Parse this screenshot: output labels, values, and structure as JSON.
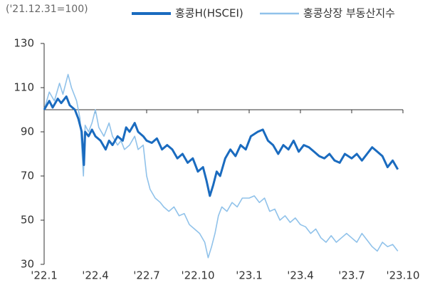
{
  "chart_data": {
    "type": "line",
    "subtitle": "('21.12.31=100)",
    "xaxis_cross": 100,
    "xlim": [
      0,
      21
    ],
    "xticks": [
      {
        "value": 0,
        "label": "'22.1"
      },
      {
        "value": 3,
        "label": "'22.4"
      },
      {
        "value": 6,
        "label": "'22.7"
      },
      {
        "value": 9,
        "label": "'22.10"
      },
      {
        "value": 12,
        "label": "'23.1"
      },
      {
        "value": 15,
        "label": "'23.4"
      },
      {
        "value": 18,
        "label": "'23.7"
      },
      {
        "value": 21,
        "label": "'23.10"
      }
    ],
    "ylim": [
      30,
      130
    ],
    "yticks": [
      30,
      50,
      70,
      90,
      110,
      130
    ],
    "legend": "top",
    "series": [
      {
        "name": "홍콩상장 부동산지수",
        "color": "#90c2ea",
        "width": 1.6,
        "x": [
          0,
          0.3,
          0.6,
          0.9,
          1.1,
          1.4,
          1.6,
          1.9,
          2.1,
          2.3,
          2.4,
          2.6,
          2.8,
          3.0,
          3.2,
          3.5,
          3.8,
          4.0,
          4.3,
          4.5,
          4.7,
          5.0,
          5.3,
          5.5,
          5.8,
          6.0,
          6.2,
          6.5,
          6.8,
          7.0,
          7.3,
          7.6,
          7.9,
          8.2,
          8.5,
          8.8,
          9.1,
          9.4,
          9.6,
          9.8,
          10.0,
          10.2,
          10.4,
          10.7,
          11.0,
          11.3,
          11.6,
          12.0,
          12.3,
          12.6,
          12.9,
          13.2,
          13.5,
          13.8,
          14.1,
          14.4,
          14.7,
          15.0,
          15.3,
          15.6,
          15.9,
          16.2,
          16.5,
          16.8,
          17.1,
          17.4,
          17.7,
          18.0,
          18.3,
          18.6,
          18.9,
          19.2,
          19.5,
          19.8,
          20.1,
          20.4,
          20.7
        ],
        "values": [
          100,
          108,
          104,
          112,
          107,
          116,
          110,
          104,
          96,
          70,
          93,
          90,
          94,
          100,
          92,
          88,
          94,
          88,
          84,
          86,
          82,
          84,
          88,
          82,
          84,
          70,
          64,
          60,
          58,
          56,
          54,
          56,
          52,
          53,
          48,
          46,
          44,
          40,
          33,
          38,
          44,
          52,
          56,
          54,
          58,
          56,
          60,
          60,
          61,
          58,
          60,
          54,
          55,
          50,
          52,
          49,
          51,
          48,
          47,
          44,
          46,
          42,
          40,
          43,
          40,
          42,
          44,
          42,
          40,
          44,
          41,
          38,
          36,
          40,
          38,
          39,
          36
        ]
      },
      {
        "name": "홍콩H(HSCEI)",
        "color": "#1a6bbf",
        "width": 3,
        "x": [
          0,
          0.3,
          0.5,
          0.8,
          1.0,
          1.3,
          1.5,
          1.8,
          2.0,
          2.2,
          2.33,
          2.4,
          2.6,
          2.8,
          3.0,
          3.3,
          3.6,
          3.8,
          4.0,
          4.3,
          4.6,
          4.8,
          5.0,
          5.3,
          5.5,
          5.8,
          6.0,
          6.3,
          6.6,
          6.9,
          7.2,
          7.5,
          7.8,
          8.1,
          8.4,
          8.7,
          9.0,
          9.3,
          9.5,
          9.7,
          9.9,
          10.1,
          10.3,
          10.6,
          10.9,
          11.2,
          11.5,
          11.8,
          12.1,
          12.5,
          12.8,
          13.1,
          13.4,
          13.7,
          14.0,
          14.3,
          14.6,
          14.9,
          15.2,
          15.5,
          15.8,
          16.1,
          16.4,
          16.7,
          17.0,
          17.3,
          17.6,
          18.0,
          18.3,
          18.6,
          18.9,
          19.2,
          19.5,
          19.8,
          20.1,
          20.4,
          20.7
        ],
        "values": [
          100,
          104,
          101,
          105,
          103,
          106,
          102,
          100,
          96,
          90,
          75,
          90,
          88,
          91,
          88,
          86,
          82,
          86,
          84,
          88,
          86,
          92,
          90,
          94,
          90,
          88,
          86,
          85,
          87,
          82,
          84,
          82,
          78,
          80,
          76,
          78,
          72,
          74,
          68,
          61,
          66,
          72,
          70,
          78,
          82,
          79,
          84,
          82,
          88,
          90,
          91,
          86,
          84,
          80,
          84,
          82,
          86,
          81,
          84,
          83,
          81,
          79,
          78,
          80,
          77,
          76,
          80,
          78,
          80,
          77,
          80,
          83,
          81,
          79,
          74,
          77,
          73
        ]
      }
    ]
  }
}
